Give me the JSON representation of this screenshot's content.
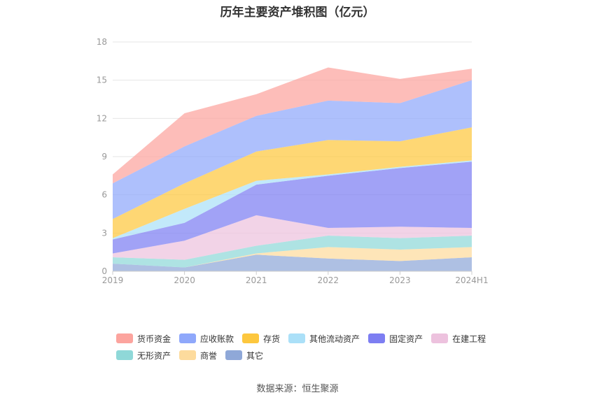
{
  "chart_data": {
    "type": "area",
    "stacked": true,
    "title": "历年主要资产堆积图（亿元）",
    "categories": [
      "2019",
      "2020",
      "2021",
      "2022",
      "2023",
      "2024H1"
    ],
    "ylim": [
      0,
      18
    ],
    "yticks": [
      0,
      3,
      6,
      9,
      12,
      15,
      18
    ],
    "grid": true,
    "legend_position": "bottom",
    "series": [
      {
        "name": "其它",
        "values": [
          0.6,
          0.3,
          1.3,
          1.0,
          0.8,
          1.1
        ],
        "color": "#8fa8d8"
      },
      {
        "name": "商誉",
        "values": [
          0.0,
          0.0,
          0.1,
          0.9,
          0.9,
          0.8
        ],
        "color": "#fddb9d"
      },
      {
        "name": "无形资产",
        "values": [
          0.5,
          0.6,
          0.6,
          0.9,
          0.9,
          0.9
        ],
        "color": "#8fd8d8"
      },
      {
        "name": "在建工程",
        "values": [
          0.3,
          1.5,
          2.4,
          0.6,
          0.9,
          0.6
        ],
        "color": "#edc2de"
      },
      {
        "name": "固定资产",
        "values": [
          1.1,
          1.4,
          2.4,
          4.1,
          4.6,
          5.2
        ],
        "color": "#7d7ef2"
      },
      {
        "name": "其他流动资产",
        "values": [
          0.1,
          1.1,
          0.3,
          0.1,
          0.1,
          0.1
        ],
        "color": "#abe0f8"
      },
      {
        "name": "存货",
        "values": [
          1.5,
          2.0,
          2.3,
          2.7,
          2.0,
          2.6
        ],
        "color": "#fdc73e"
      },
      {
        "name": "应收账款",
        "values": [
          2.8,
          2.9,
          2.8,
          3.1,
          3.0,
          3.7
        ],
        "color": "#8fa8fb"
      },
      {
        "name": "货币资金",
        "values": [
          0.7,
          2.6,
          1.7,
          2.6,
          1.9,
          0.9
        ],
        "color": "#fca49e"
      }
    ],
    "legend_order": [
      "货币资金",
      "应收账款",
      "存货",
      "其他流动资产",
      "固定资产",
      "在建工程",
      "无形资产",
      "商誉",
      "其它"
    ]
  },
  "source": "数据来源：恒生聚源"
}
